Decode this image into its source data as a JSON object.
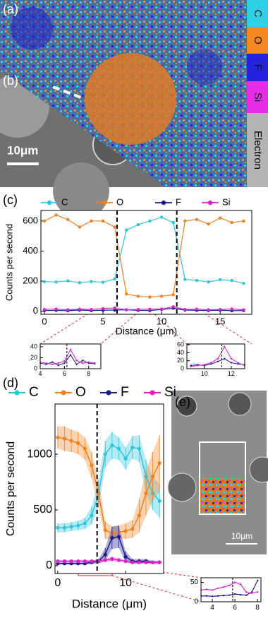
{
  "figure": {
    "labels": {
      "a": "(a)",
      "b": "(b)",
      "c": "(c)",
      "d": "(d)",
      "e": "(e)"
    },
    "map_legend": [
      {
        "label": "C",
        "color": "#2ed0e6"
      },
      {
        "label": "O",
        "color": "#f5891f"
      },
      {
        "label": "F",
        "color": "#2424e0"
      },
      {
        "label": "Si",
        "color": "#e62ee6"
      },
      {
        "label": "Electron",
        "color": "#b4b4b4"
      }
    ],
    "scale_bar_ab": "10μm",
    "scale_bar_e": "10μm"
  },
  "chart_data": [
    {
      "type": "line",
      "xlabel": "Distance (μm)",
      "ylabel": "Counts per second",
      "x": [
        0,
        1,
        2,
        3,
        4,
        5,
        6,
        7,
        8,
        9,
        10,
        11,
        12,
        13,
        14,
        15,
        16,
        17
      ],
      "xlim": [
        -0.3,
        17.7
      ],
      "ylim": [
        -20,
        670
      ],
      "xticks": [
        0,
        5,
        10,
        15
      ],
      "yticks": [
        0,
        200,
        400,
        600
      ],
      "vlines": [
        6.2,
        11.3
      ],
      "series": [
        {
          "name": "C",
          "color": "#2ec4dc",
          "values": [
            197,
            195,
            202,
            190,
            198,
            193,
            215,
            540,
            575,
            600,
            625,
            590,
            212,
            205,
            195,
            210,
            205,
            185
          ]
        },
        {
          "name": "O",
          "color": "#f08020",
          "values": [
            600,
            640,
            610,
            560,
            600,
            600,
            560,
            115,
            100,
            95,
            100,
            110,
            600,
            610,
            580,
            620,
            590,
            600
          ]
        },
        {
          "name": "F",
          "color": "#1a1a8c",
          "values": [
            5,
            6,
            4,
            8,
            5,
            7,
            8,
            10,
            6,
            5,
            12,
            20,
            8,
            6,
            5,
            7,
            4,
            5
          ]
        },
        {
          "name": "Si",
          "color": "#e020c8",
          "values": [
            12,
            15,
            10,
            14,
            12,
            18,
            22,
            10,
            12,
            14,
            15,
            30,
            12,
            14,
            10,
            12,
            15,
            10
          ]
        }
      ]
    },
    {
      "type": "line",
      "x": [
        4,
        4.5,
        5,
        5.5,
        6,
        6.5,
        7,
        7.5,
        8,
        8.5
      ],
      "xlim": [
        4,
        9
      ],
      "ylim": [
        0,
        45
      ],
      "xticks": [
        4,
        6,
        8
      ],
      "yticks": [
        0,
        20,
        40
      ],
      "vlines": [
        6.2
      ],
      "series": [
        {
          "color": "#1a1a8c",
          "values": [
            10,
            8,
            12,
            6,
            10,
            25,
            8,
            15,
            10,
            9
          ]
        },
        {
          "color": "#e020c8",
          "values": [
            12,
            10,
            8,
            10,
            14,
            35,
            15,
            10,
            12,
            10
          ]
        }
      ]
    },
    {
      "type": "line",
      "x": [
        9,
        9.5,
        10,
        10.5,
        11,
        11.5,
        12,
        12.5,
        13
      ],
      "xlim": [
        8.7,
        13
      ],
      "ylim": [
        0,
        62
      ],
      "xticks": [
        10,
        12
      ],
      "yticks": [
        0,
        20,
        40,
        60
      ],
      "vlines": [
        11.3
      ],
      "series": [
        {
          "color": "#1a1a8c",
          "values": [
            8,
            10,
            8,
            12,
            18,
            25,
            15,
            12,
            10
          ]
        },
        {
          "color": "#e020c8",
          "values": [
            5,
            8,
            10,
            15,
            25,
            55,
            25,
            15,
            8
          ]
        }
      ]
    },
    {
      "type": "line",
      "xlabel": "Distance (μm)",
      "ylabel": "Counts per second",
      "x": [
        0,
        1,
        2,
        3,
        4,
        5,
        6,
        7,
        8,
        9,
        10,
        11,
        12,
        13,
        14,
        15
      ],
      "xlim": [
        -0.4,
        15.6
      ],
      "ylim": [
        -70,
        1450
      ],
      "xticks": [
        0,
        10
      ],
      "yticks": [
        0,
        500,
        1000
      ],
      "vlines": [
        5.8
      ],
      "series": [
        {
          "name": "C",
          "color": "#2ec4dc",
          "values": [
            340,
            340,
            350,
            360,
            380,
            450,
            640,
            1000,
            1080,
            1050,
            960,
            1060,
            1050,
            800,
            650,
            580
          ],
          "errors": [
            40,
            40,
            40,
            40,
            50,
            80,
            120,
            120,
            120,
            100,
            100,
            100,
            120,
            150,
            150,
            150
          ]
        },
        {
          "name": "O",
          "color": "#f08020",
          "values": [
            1150,
            1140,
            1120,
            1100,
            1050,
            900,
            650,
            320,
            290,
            300,
            310,
            330,
            450,
            650,
            800,
            920
          ],
          "errors": [
            100,
            110,
            100,
            100,
            100,
            120,
            120,
            80,
            60,
            60,
            70,
            80,
            150,
            200,
            220,
            250
          ]
        },
        {
          "name": "F",
          "color": "#1a1a8c",
          "values": [
            20,
            20,
            20,
            20,
            20,
            30,
            40,
            100,
            250,
            260,
            80,
            40,
            40,
            40,
            30,
            30
          ],
          "errors": [
            10,
            10,
            10,
            10,
            10,
            15,
            20,
            60,
            100,
            100,
            50,
            20,
            20,
            20,
            15,
            15
          ]
        },
        {
          "name": "Si",
          "color": "#e020c8",
          "values": [
            40,
            40,
            40,
            40,
            40,
            40,
            40,
            50,
            60,
            50,
            40,
            30,
            30,
            30,
            30,
            30
          ],
          "errors": [
            10,
            10,
            10,
            10,
            10,
            10,
            10,
            15,
            20,
            15,
            10,
            10,
            10,
            10,
            10,
            10
          ]
        }
      ]
    },
    {
      "type": "line",
      "x": [
        3,
        3.5,
        4,
        4.5,
        5,
        5.5,
        6,
        6.5,
        7,
        7.5,
        8
      ],
      "xlim": [
        3,
        8.3
      ],
      "ylim": [
        0,
        62
      ],
      "xticks": [
        4,
        6,
        8
      ],
      "yticks": [
        0,
        50
      ],
      "vlines": [
        5.8
      ],
      "series": [
        {
          "color": "#1a1a8c",
          "values": [
            15,
            15,
            14,
            15,
            16,
            17,
            20,
            18,
            17,
            25,
            55
          ]
        },
        {
          "color": "#e020c8",
          "values": [
            30,
            32,
            30,
            35,
            38,
            42,
            50,
            45,
            25,
            22,
            25
          ]
        }
      ]
    }
  ]
}
